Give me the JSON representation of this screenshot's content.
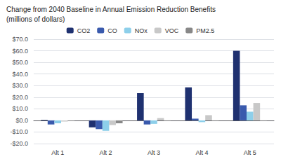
{
  "chart_data": {
    "type": "bar",
    "title": "Change from 2040 Baseline in Annual Emission Reduction Benefits",
    "subtitle": "(millions of dollars)",
    "categories": [
      "Alt 1",
      "Alt 2",
      "Alt 3",
      "Alt 4",
      "Alt 5"
    ],
    "series": [
      {
        "name": "CO2",
        "color": "#1f3170",
        "values": [
          0.5,
          -6.0,
          23.5,
          28.5,
          60.0
        ]
      },
      {
        "name": "CO",
        "color": "#3a5aad",
        "values": [
          -3.5,
          -7.5,
          -3.5,
          1.5,
          13.0
        ]
      },
      {
        "name": "NOx",
        "color": "#8dcfea",
        "values": [
          -2.5,
          -9.0,
          -3.0,
          -1.5,
          7.5
        ]
      },
      {
        "name": "VOC",
        "color": "#c8c8c8",
        "values": [
          -1.0,
          -4.0,
          2.0,
          4.5,
          15.0
        ]
      },
      {
        "name": "PM2.5",
        "color": "#888888",
        "values": [
          -0.5,
          -2.5,
          -0.5,
          -0.5,
          -0.5
        ]
      }
    ],
    "ylim": [
      -20,
      70
    ],
    "yticks": [
      {
        "value": -20,
        "label": "-$20.0"
      },
      {
        "value": -10,
        "label": "-$10.0"
      },
      {
        "value": 0,
        "label": "$0.0"
      },
      {
        "value": 10,
        "label": "$10.0"
      },
      {
        "value": 20,
        "label": "$20.0"
      },
      {
        "value": 30,
        "label": "$30.0"
      },
      {
        "value": 40,
        "label": "$40.0"
      },
      {
        "value": 50,
        "label": "$50.0"
      },
      {
        "value": 60,
        "label": "$60.0"
      },
      {
        "value": 70,
        "label": "$70.0"
      }
    ],
    "grid": true,
    "legend": "top"
  }
}
